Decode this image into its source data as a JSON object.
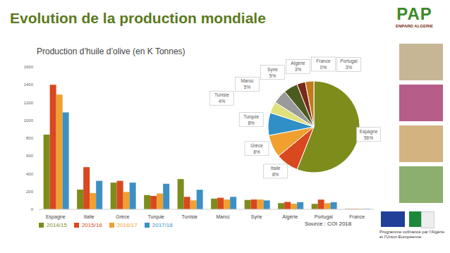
{
  "title": "Evolution de la production mondiale",
  "chart_data": [
    {
      "type": "bar",
      "title": "Production d’huile d’olive (en K Tonnes)",
      "categories": [
        "Espagne",
        "Italie",
        "Grèce",
        "Turquie",
        "Tunisie",
        "Maroc",
        "Syrie",
        "Algérie",
        "Portugal",
        "France"
      ],
      "series": [
        {
          "name": "2014/15",
          "color": "#7e8c1c",
          "values": [
            840,
            222,
            300,
            160,
            340,
            120,
            105,
            70,
            61,
            5
          ]
        },
        {
          "name": "2015/16",
          "color": "#d9481f",
          "values": [
            1400,
            474,
            320,
            150,
            140,
            130,
            110,
            83,
            109,
            5
          ]
        },
        {
          "name": "2016/17",
          "color": "#f0a02f",
          "values": [
            1290,
            182,
            195,
            178,
            100,
            110,
            110,
            63,
            69,
            5
          ]
        },
        {
          "name": "2017/18",
          "color": "#3d90c4",
          "values": [
            1090,
            320,
            300,
            287,
            220,
            140,
            100,
            80,
            80,
            5
          ]
        }
      ],
      "ylim": [
        0,
        1600
      ],
      "yticks": [
        0,
        200,
        400,
        600,
        800,
        1000,
        1200,
        1400,
        1600
      ],
      "legend": "bottom"
    },
    {
      "type": "pie",
      "categories": [
        "Espagne",
        "Italie",
        "Grèce",
        "Turquie",
        "Tunisie",
        "Maroc",
        "Syrie",
        "Algérie",
        "Portugal",
        "France"
      ],
      "values": [
        56,
        8,
        8,
        8,
        4,
        5,
        5,
        3,
        3,
        0
      ],
      "value_labels": [
        "56%",
        "8%",
        "8%",
        "8%",
        "4%",
        "5%",
        "5%",
        "3%",
        "3%",
        "0%"
      ],
      "colors": [
        "#7e8c1c",
        "#d9481f",
        "#f0a02f",
        "#2f8fc6",
        "#dfe17a",
        "#9a9a9a",
        "#4b5a1e",
        "#7a2a18",
        "#c07a1c",
        "#7b8aa8"
      ]
    }
  ],
  "source": "Source : COI 2018",
  "logo": {
    "name": "PAP",
    "subtitle": "ENPARD ALGERIE"
  },
  "footer": "Programme cofinancé par l’Algérie et l’Union Européenne"
}
